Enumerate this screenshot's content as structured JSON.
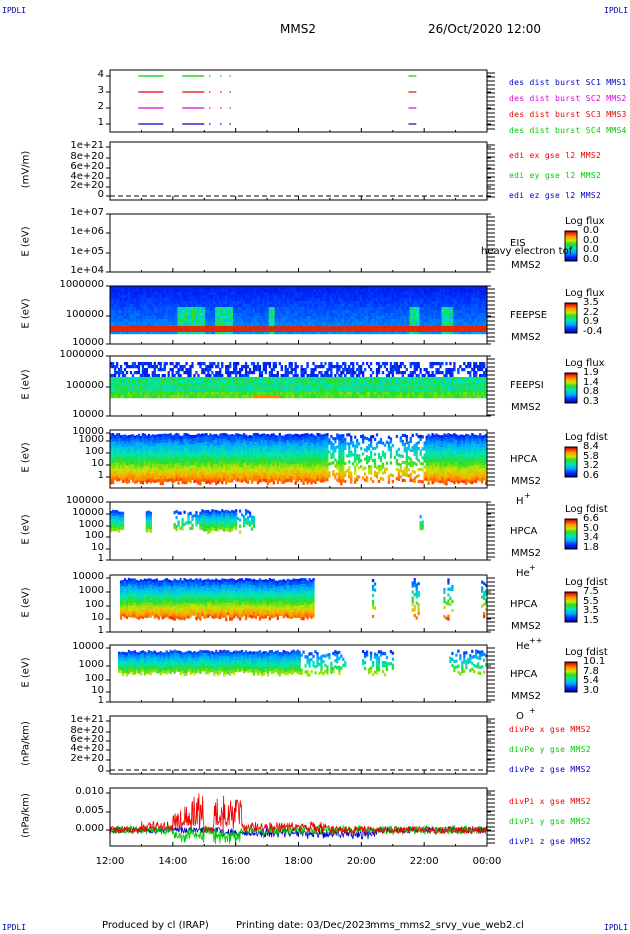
{
  "header": {
    "corner_left": "IPDLI",
    "corner_right": "IPDLI",
    "corner_bottom_left": "IPDLI",
    "corner_bottom_right": "IPDLI",
    "title": "MMS2",
    "date": "26/Oct/2020 12:00"
  },
  "footer": {
    "produced": "Produced by cl (IRAP)",
    "printing": "Printing date: 03/Dec/2023",
    "file": "mms_mms2_srvy_vue_web2.cl"
  },
  "colors": {
    "sc1": "#00cc00",
    "sc2": "#dd00dd",
    "sc3": "#ee0000",
    "sc4": "#0000cc",
    "x": "#ee0000",
    "y": "#00cc00",
    "z": "#0000cc"
  },
  "chart_data": [
    {
      "id": "des-dist",
      "type": "line",
      "yticks": [
        "4",
        "3",
        "2",
        "1"
      ],
      "legend": [
        {
          "text": "des dist burst SC1 MMS1",
          "color": "#0000cc"
        },
        {
          "text": "des dist burst SC2 MMS2",
          "color": "#dd00dd"
        },
        {
          "text": "des dist burst SC3 MMS3",
          "color": "#ee0000"
        },
        {
          "text": "des dist burst SC4 MMS4",
          "color": "#00cc00"
        }
      ]
    },
    {
      "id": "edi",
      "type": "line",
      "ylabel": "(mV/m)",
      "yticks": [
        "1e+21",
        "8e+20",
        "6e+20",
        "4e+20",
        "2e+20",
        "0"
      ],
      "legend": [
        {
          "text": "edi ex gse l2 MMS2",
          "color": "#ee0000"
        },
        {
          "text": "edi ey gse l2 MMS2",
          "color": "#00cc00"
        },
        {
          "text": "edi ez gse l2 MMS2",
          "color": "#0000cc"
        }
      ]
    },
    {
      "id": "eis",
      "type": "heatmap",
      "ylabel": "E (eV)",
      "yticks": [
        "1e+07",
        "1e+06",
        "1e+05",
        "1e+04"
      ],
      "name": "EIS",
      "overlay": "heavy electron tof",
      "sc": "MMS2",
      "colorbar_title": "Log flux",
      "colorbar_values": [
        "0.0",
        "0.0",
        "0.0",
        "0.0"
      ]
    },
    {
      "id": "feepse",
      "type": "heatmap",
      "ylabel": "E (eV)",
      "yticks": [
        "1000000",
        "100000",
        "10000"
      ],
      "name": "FEEPSE",
      "sc": "MMS2",
      "colorbar_title": "Log flux",
      "colorbar_values": [
        "3.5",
        "2.2",
        "0.9",
        "-0.4"
      ]
    },
    {
      "id": "feepsi",
      "type": "heatmap",
      "ylabel": "E (eV)",
      "yticks": [
        "1000000",
        "100000",
        "10000"
      ],
      "name": "FEEPSI",
      "sc": "MMS2",
      "colorbar_title": "Log flux",
      "colorbar_values": [
        "1.9",
        "1.4",
        "0.8",
        "0.3"
      ]
    },
    {
      "id": "hpca-h",
      "type": "heatmap",
      "ylabel": "E (eV)",
      "yticks": [
        "10000",
        "1000",
        "100",
        "10",
        "1"
      ],
      "name": "HPCA",
      "sc": "MMS2",
      "species": "H",
      "charge": "+",
      "colorbar_title": "Log fdist",
      "colorbar_values": [
        "8.4",
        "5.8",
        "3.2",
        "0.6"
      ]
    },
    {
      "id": "hpca-he",
      "type": "heatmap",
      "ylabel": "E (eV)",
      "yticks": [
        "100000",
        "10000",
        "1000",
        "100",
        "10",
        "1"
      ],
      "name": "HPCA",
      "sc": "MMS2",
      "species": "He",
      "charge": "+",
      "colorbar_title": "Log fdist",
      "colorbar_values": [
        "6.6",
        "5.0",
        "3.4",
        "1.8"
      ]
    },
    {
      "id": "hpca-he2",
      "type": "heatmap",
      "ylabel": "E (eV)",
      "yticks": [
        "10000",
        "1000",
        "100",
        "10",
        "1"
      ],
      "name": "HPCA",
      "sc": "MMS2",
      "species": "He",
      "charge": "++",
      "colorbar_title": "Log fdist",
      "colorbar_values": [
        "7.5",
        "5.5",
        "3.5",
        "1.5"
      ]
    },
    {
      "id": "hpca-o",
      "type": "heatmap",
      "ylabel": "E (eV)",
      "yticks": [
        "10000",
        "1000",
        "100",
        "10",
        "1"
      ],
      "name": "HPCA",
      "sc": "MMS2",
      "species": "O",
      "charge": "+",
      "colorbar_title": "Log fdist",
      "colorbar_values": [
        "10.1",
        "7.8",
        "5.4",
        "3.0"
      ]
    },
    {
      "id": "divpe",
      "type": "line",
      "ylabel": "(nPa/km)",
      "yticks": [
        "1e+21",
        "8e+20",
        "6e+20",
        "4e+20",
        "2e+20",
        "0"
      ],
      "legend": [
        {
          "text": "divPe x gse MMS2",
          "color": "#ee0000"
        },
        {
          "text": "divPe y gse MMS2",
          "color": "#00cc00"
        },
        {
          "text": "divPe z gse MMS2",
          "color": "#0000cc"
        }
      ]
    },
    {
      "id": "divpi",
      "type": "line",
      "ylabel": "(nPa/km)",
      "yticks": [
        "0.010",
        "0.005",
        "0.000"
      ],
      "legend": [
        {
          "text": "divPi x gse MMS2",
          "color": "#ee0000"
        },
        {
          "text": "divPi y gse MMS2",
          "color": "#00cc00"
        },
        {
          "text": "divPi z gse MMS2",
          "color": "#0000cc"
        }
      ]
    }
  ],
  "xaxis": {
    "ticks": [
      "12:00",
      "14:00",
      "16:00",
      "18:00",
      "20:00",
      "22:00",
      "00:00"
    ]
  }
}
